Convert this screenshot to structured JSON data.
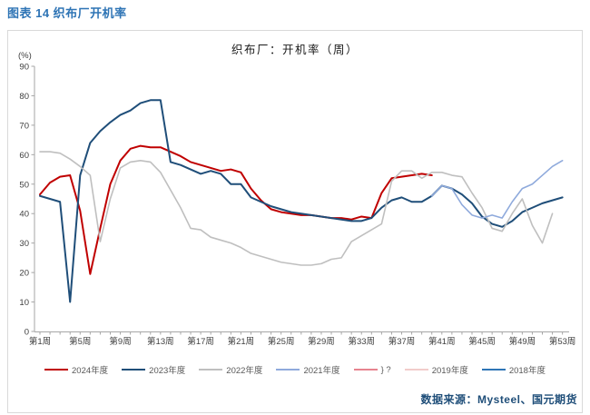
{
  "page": {
    "title": "图表 14 织布厂开机率",
    "source": "数据来源：Mysteel、国元期货"
  },
  "chart": {
    "title": "织布厂：开机率（周）",
    "unit": "(%)"
  },
  "chart_data": {
    "type": "line",
    "title": "织布厂：开机率（周）",
    "ylabel": "(%)",
    "ylim": [
      0,
      90
    ],
    "grid": false,
    "legend_position": "bottom",
    "y_ticks": [
      0,
      10,
      20,
      30,
      40,
      50,
      60,
      70,
      80,
      90
    ],
    "x_tick_weeks": [
      1,
      5,
      9,
      13,
      17,
      21,
      25,
      29,
      33,
      37,
      41,
      45,
      49,
      53
    ],
    "x_tick_labels": [
      "第1周",
      "第5周",
      "第9周",
      "第13周",
      "第17周",
      "第21周",
      "第25周",
      "第29周",
      "第33周",
      "第37周",
      "第41周",
      "第45周",
      "第49周",
      "第53周"
    ],
    "x_axis_weeks": 53,
    "series": [
      {
        "name": "2024年度",
        "color": "#C00000",
        "width": 2,
        "start_week": 1,
        "values": [
          46.5,
          50.5,
          52.5,
          53,
          41,
          19.5,
          35,
          50,
          58,
          62,
          63,
          62.5,
          62.5,
          61,
          59.5,
          57.5,
          56.5,
          55.5,
          54.5,
          55,
          54,
          48.5,
          44.5,
          41.5,
          40.5,
          40,
          39.5,
          39.5,
          39,
          38.5,
          38.5,
          38,
          39,
          38.5,
          47,
          52,
          52.5,
          53,
          53.5,
          53
        ]
      },
      {
        "name": "2023年度",
        "color": "#1F4E79",
        "width": 2,
        "start_week": 1,
        "values": [
          46,
          45,
          44,
          10,
          53,
          64,
          68,
          71,
          73.5,
          75,
          77.5,
          78.5,
          78.5,
          57.5,
          56.5,
          55,
          53.5,
          54.5,
          53.5,
          50,
          50,
          45.5,
          44,
          42.5,
          41.5,
          40.5,
          40,
          39.5,
          39,
          38.5,
          38,
          37.5,
          37.5,
          38.5,
          42,
          44.5,
          45.5,
          44,
          44,
          46,
          49.5,
          48.5,
          46.5,
          43.5,
          39,
          36.5,
          35.5,
          37.5,
          40.5,
          42,
          43.5,
          44.5,
          45.5
        ]
      },
      {
        "name": "2022年度",
        "color": "#BFBFBF",
        "width": 1.6,
        "start_week": 1,
        "values": [
          61,
          61,
          60.5,
          58.5,
          56,
          53,
          30.5,
          45,
          55.5,
          57.5,
          58,
          57.5,
          54,
          48,
          42,
          35,
          34.5,
          32,
          31,
          30,
          28.5,
          26.5,
          25.5,
          24.5,
          23.5,
          23,
          22.5,
          22.5,
          23,
          24.5,
          25,
          30.5,
          32.5,
          34.5,
          36.5,
          51,
          54.5,
          54.5,
          52,
          54,
          54,
          53,
          52.5,
          47,
          42,
          35,
          34,
          40,
          45,
          36,
          30,
          40
        ]
      },
      {
        "name": "2021年度",
        "color": "#8FAADC",
        "width": 1.6,
        "start_week": 40,
        "values": [
          46,
          49.5,
          48.5,
          43,
          39.5,
          38.5,
          39.5,
          38.5,
          44,
          48.5,
          50,
          53,
          56,
          58
        ]
      },
      {
        "name": "} ?",
        "color": "#E7848F",
        "width": 1.6,
        "start_week": 1,
        "values": []
      },
      {
        "name": "2019年度",
        "color": "#F2CCCB",
        "width": 1.6,
        "start_week": 1,
        "values": []
      },
      {
        "name": "2018年度",
        "color": "#2E75B6",
        "width": 1.6,
        "start_week": 1,
        "values": []
      }
    ]
  }
}
